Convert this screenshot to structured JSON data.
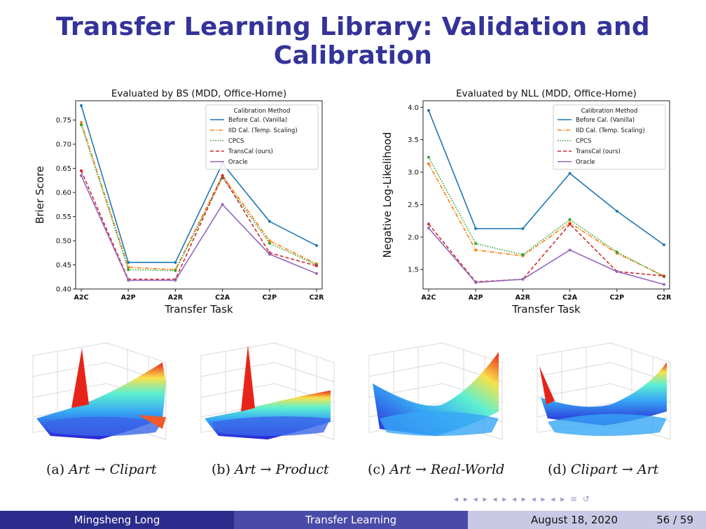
{
  "slide": {
    "title": "Transfer Learning Library: Validation and Calibration"
  },
  "chart_data": [
    {
      "type": "line",
      "title": "Evaluated by BS (MDD, Office-Home)",
      "xlabel": "Transfer Task",
      "ylabel": "Brier Score",
      "categories": [
        "A2C",
        "A2P",
        "A2R",
        "C2A",
        "C2P",
        "C2R"
      ],
      "ylim": [
        0.4,
        0.79
      ],
      "yticks": [
        0.4,
        0.45,
        0.5,
        0.55,
        0.6,
        0.65,
        0.7,
        0.75
      ],
      "legend_title": "Calibration Method",
      "legend_position": "top-right",
      "series": [
        {
          "name": "Before Cal. (Vanilla)",
          "color": "#1f77b4",
          "dash": "solid",
          "values": [
            0.78,
            0.455,
            0.455,
            0.66,
            0.54,
            0.49
          ]
        },
        {
          "name": "IID Cal. (Temp. Scaling)",
          "color": "#ff7f0e",
          "dash": "dashdot",
          "values": [
            0.745,
            0.445,
            0.44,
            0.635,
            0.5,
            0.452
          ]
        },
        {
          "name": "CPCS",
          "color": "#2ca02c",
          "dash": "dotted",
          "values": [
            0.74,
            0.44,
            0.438,
            0.63,
            0.495,
            0.45
          ]
        },
        {
          "name": "TransCal (ours)",
          "color": "#d62728",
          "dash": "dashed",
          "values": [
            0.645,
            0.42,
            0.42,
            0.635,
            0.475,
            0.448
          ]
        },
        {
          "name": "Oracle",
          "color": "#9467bd",
          "dash": "solid",
          "values": [
            0.635,
            0.418,
            0.418,
            0.575,
            0.472,
            0.432
          ]
        }
      ]
    },
    {
      "type": "line",
      "title": "Evaluated by NLL (MDD, Office-Home)",
      "xlabel": "Transfer Task",
      "ylabel": "Negative Log-Likelihood",
      "categories": [
        "A2C",
        "A2P",
        "A2R",
        "C2A",
        "C2P",
        "C2R"
      ],
      "ylim": [
        1.2,
        4.1
      ],
      "yticks": [
        1.5,
        2.0,
        2.5,
        3.0,
        3.5,
        4.0
      ],
      "legend_title": "Calibration Method",
      "legend_position": "top-right",
      "series": [
        {
          "name": "Before Cal. (Vanilla)",
          "color": "#1f77b4",
          "dash": "solid",
          "values": [
            3.95,
            2.13,
            2.13,
            2.98,
            2.4,
            1.88
          ]
        },
        {
          "name": "IID Cal. (Temp. Scaling)",
          "color": "#ff7f0e",
          "dash": "dashdot",
          "values": [
            3.13,
            1.8,
            1.71,
            2.22,
            1.75,
            1.4
          ]
        },
        {
          "name": "CPCS",
          "color": "#2ca02c",
          "dash": "dotted",
          "values": [
            3.23,
            1.9,
            1.73,
            2.27,
            1.77,
            1.39
          ]
        },
        {
          "name": "TransCal (ours)",
          "color": "#d62728",
          "dash": "dashed",
          "values": [
            2.2,
            1.31,
            1.35,
            2.2,
            1.47,
            1.4
          ]
        },
        {
          "name": "Oracle",
          "color": "#9467bd",
          "dash": "solid",
          "values": [
            2.14,
            1.3,
            1.35,
            1.8,
            1.47,
            1.27
          ]
        }
      ]
    }
  ],
  "surfaces": [
    {
      "caption_prefix": "(a)",
      "source": "Art",
      "arrow": "→",
      "target": "Clipart"
    },
    {
      "caption_prefix": "(b)",
      "source": "Art",
      "arrow": "→",
      "target": "Product"
    },
    {
      "caption_prefix": "(c)",
      "source": "Art",
      "arrow": "→",
      "target": "Real-World"
    },
    {
      "caption_prefix": "(d)",
      "source": "Clipart",
      "arrow": "→",
      "target": "Art"
    }
  ],
  "footer": {
    "author": "Mingsheng Long",
    "talk": "Transfer Learning",
    "date": "August 18, 2020",
    "page": "56 / 59"
  }
}
